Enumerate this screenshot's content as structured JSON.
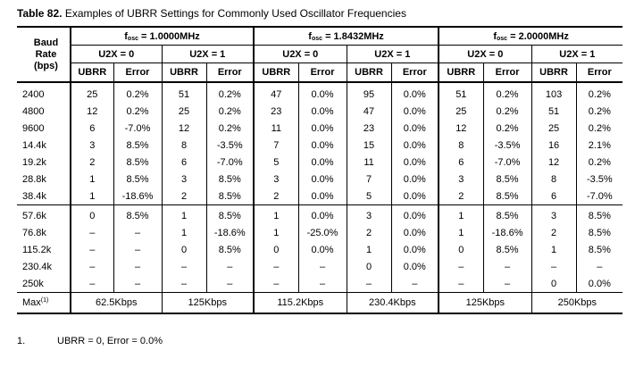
{
  "caption": {
    "number": "Table 82.",
    "title": "Examples of UBRR Settings for Commonly Used Oscillator Frequencies"
  },
  "header": {
    "baud_line1": "Baud",
    "baud_line2": "Rate",
    "baud_line3": "(bps)",
    "fosc_prefix": "f",
    "fosc_sub": "osc",
    "freqs": [
      "= 1.0000MHz",
      "= 1.8432MHz",
      "= 2.0000MHz"
    ],
    "u2x0": "U2X = 0",
    "u2x1": "U2X = 1",
    "ubrr": "UBRR",
    "error": "Error"
  },
  "rows_group1": [
    [
      "2400",
      "25",
      "0.2%",
      "51",
      "0.2%",
      "47",
      "0.0%",
      "95",
      "0.0%",
      "51",
      "0.2%",
      "103",
      "0.2%"
    ],
    [
      "4800",
      "12",
      "0.2%",
      "25",
      "0.2%",
      "23",
      "0.0%",
      "47",
      "0.0%",
      "25",
      "0.2%",
      "51",
      "0.2%"
    ],
    [
      "9600",
      "6",
      "-7.0%",
      "12",
      "0.2%",
      "11",
      "0.0%",
      "23",
      "0.0%",
      "12",
      "0.2%",
      "25",
      "0.2%"
    ],
    [
      "14.4k",
      "3",
      "8.5%",
      "8",
      "-3.5%",
      "7",
      "0.0%",
      "15",
      "0.0%",
      "8",
      "-3.5%",
      "16",
      "2.1%"
    ],
    [
      "19.2k",
      "2",
      "8.5%",
      "6",
      "-7.0%",
      "5",
      "0.0%",
      "11",
      "0.0%",
      "6",
      "-7.0%",
      "12",
      "0.2%"
    ],
    [
      "28.8k",
      "1",
      "8.5%",
      "3",
      "8.5%",
      "3",
      "0.0%",
      "7",
      "0.0%",
      "3",
      "8.5%",
      "8",
      "-3.5%"
    ],
    [
      "38.4k",
      "1",
      "-18.6%",
      "2",
      "8.5%",
      "2",
      "0.0%",
      "5",
      "0.0%",
      "2",
      "8.5%",
      "6",
      "-7.0%"
    ]
  ],
  "rows_group2": [
    [
      "57.6k",
      "0",
      "8.5%",
      "1",
      "8.5%",
      "1",
      "0.0%",
      "3",
      "0.0%",
      "1",
      "8.5%",
      "3",
      "8.5%"
    ],
    [
      "76.8k",
      "–",
      "–",
      "1",
      "-18.6%",
      "1",
      "-25.0%",
      "2",
      "0.0%",
      "1",
      "-18.6%",
      "2",
      "8.5%"
    ],
    [
      "115.2k",
      "–",
      "–",
      "0",
      "8.5%",
      "0",
      "0.0%",
      "1",
      "0.0%",
      "0",
      "8.5%",
      "1",
      "8.5%"
    ],
    [
      "230.4k",
      "–",
      "–",
      "–",
      "–",
      "–",
      "–",
      "0",
      "0.0%",
      "–",
      "–",
      "–",
      "–"
    ],
    [
      "250k",
      "–",
      "–",
      "–",
      "–",
      "–",
      "–",
      "–",
      "–",
      "–",
      "–",
      "0",
      "0.0%"
    ]
  ],
  "max_row": {
    "label": "Max",
    "footnote_ref": "(1)",
    "values": [
      "62.5Kbps",
      "125Kbps",
      "115.2Kbps",
      "230.4Kbps",
      "125Kbps",
      "250Kbps"
    ]
  },
  "footnote": {
    "number": "1.",
    "text": "UBRR = 0, Error = 0.0%"
  }
}
